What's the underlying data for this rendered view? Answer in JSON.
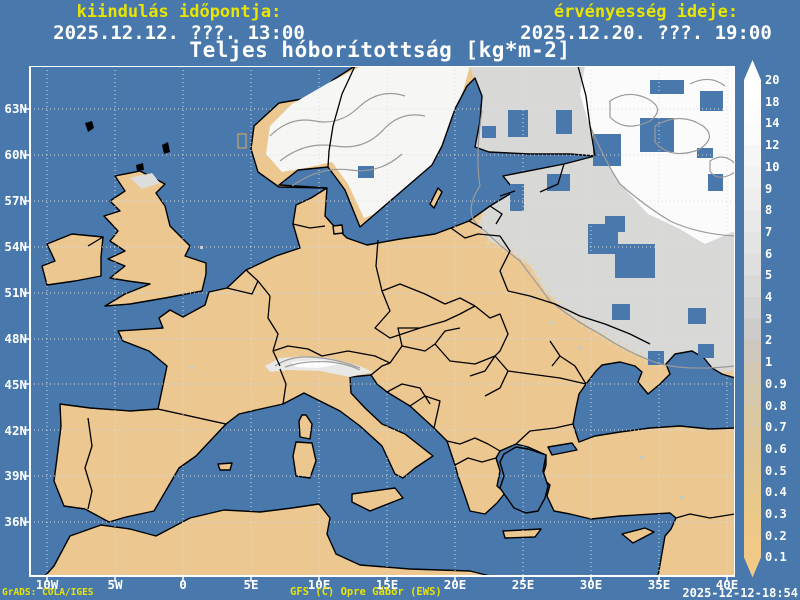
{
  "header": {
    "start_label": "kiindulás időpontja:",
    "start_datetime": "2025.12.12. ???. 13:00",
    "valid_label": "érvényesség ideje:",
    "valid_datetime": "2025.12.20. ???. 19:00",
    "title": "Teljes hóborítottság [kg*m-2]"
  },
  "map": {
    "lat_labels": [
      "63N",
      "60N",
      "57N",
      "54N",
      "51N",
      "48N",
      "45N",
      "42N",
      "39N",
      "36N"
    ],
    "lon_labels": [
      "10W",
      "5W",
      "0",
      "5E",
      "10E",
      "15E",
      "20E",
      "25E",
      "30E",
      "35E",
      "40E"
    ]
  },
  "colorbar": {
    "tick_labels": [
      "20",
      "18",
      "14",
      "12",
      "10",
      "9",
      "8",
      "7",
      "6",
      "5",
      "4",
      "3",
      "2",
      "1",
      "0.9",
      "0.8",
      "0.7",
      "0.6",
      "0.5",
      "0.4",
      "0.3",
      "0.2",
      "0.1"
    ],
    "segment_colors": [
      "#ffffff",
      "#fdfdfd",
      "#fafafa",
      "#f6f6f6",
      "#f2f2f2",
      "#eeeeee",
      "#e9e9e9",
      "#e4e4e4",
      "#dfdfdf",
      "#d9d9d9",
      "#d3d3d3",
      "#cdccca",
      "#cdc7bd",
      "#d1c7b2",
      "#d5c7a9",
      "#d9c7a1",
      "#ddc79a",
      "#e1c794",
      "#e5c88f",
      "#e9c88b",
      "#edc888",
      "#f0c986"
    ],
    "arrow_top_color": "#ffffff",
    "arrow_bottom_color": "#f2ca85"
  },
  "footer": {
    "grads": "GrADS: COLA/IGES",
    "credit": "GFS (C) Opre Gábor (EWS)",
    "generated": "2025-12-12-18:54"
  },
  "colors": {
    "background": "#4878ac",
    "sea": "#4878ac",
    "land": "#ecc78f",
    "coast": "#000000",
    "snow_gray": "#d8d8d6",
    "snow_pale": "#f6f6f4",
    "snow_white": "#fbfbfb",
    "contour": "#9a9a9a",
    "grid": "#d9dde0",
    "text_yellow": "#e9e400",
    "text_white": "#ffffff"
  }
}
